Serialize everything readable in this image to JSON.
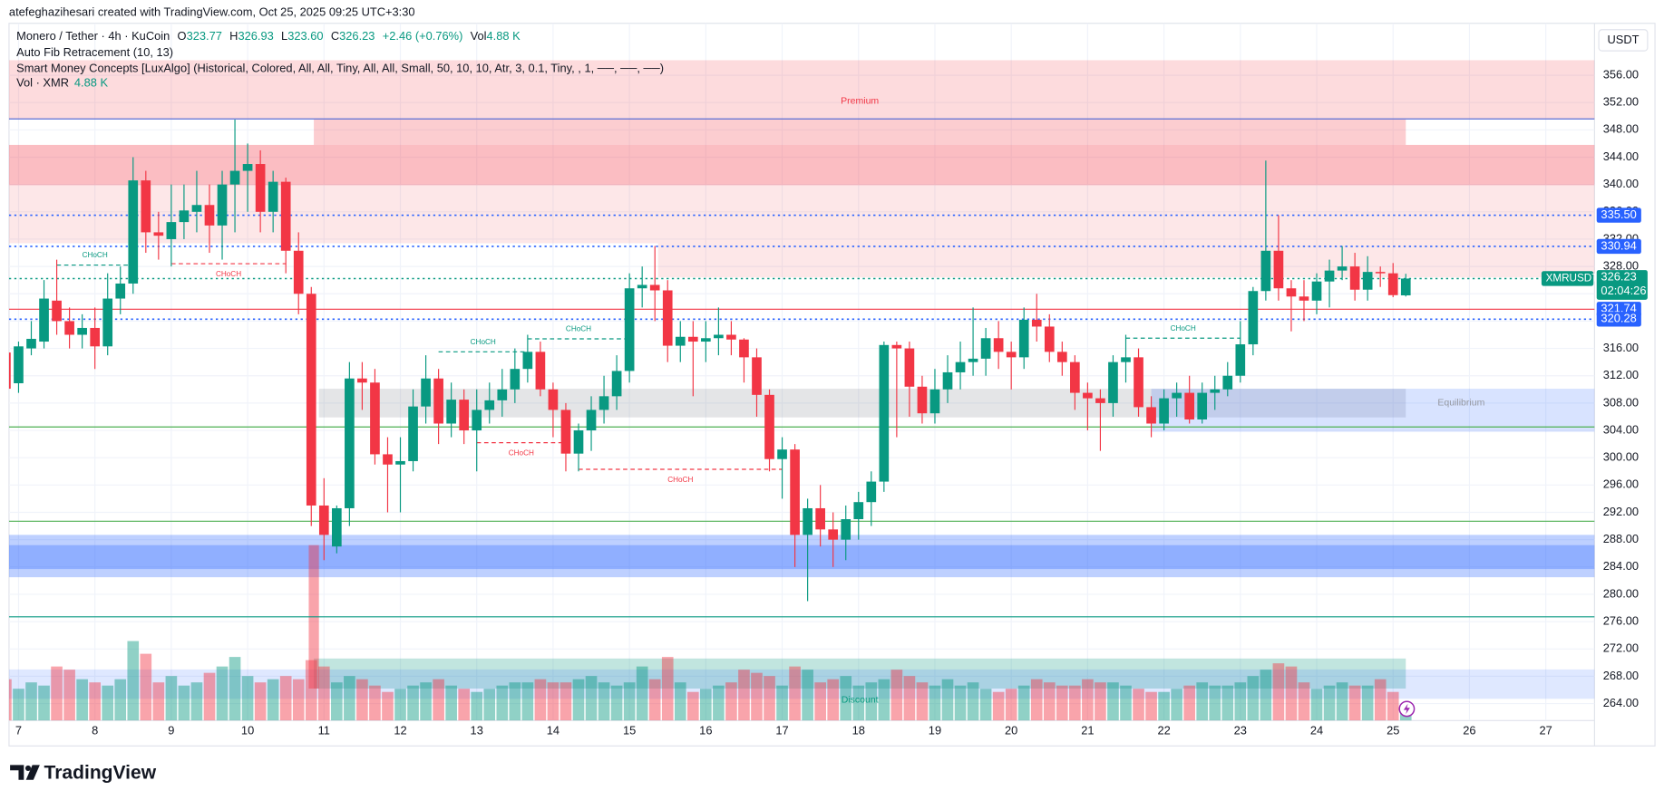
{
  "header": {
    "creator": "atefeghazihesari created with TradingView.com, Oct 25, 2025 09:25 UTC+3:30",
    "currency": "USDT"
  },
  "legend": {
    "symbol": "Monero / Tether · 4h · KuCoin",
    "o": "O",
    "o_value": "323.77",
    "h": "H",
    "h_value": "326.93",
    "l": "L",
    "l_value": "323.60",
    "c": "C",
    "c_value": "326.23",
    "change": "+2.46 (+0.76%)",
    "vol": "Vol",
    "vol_value": "4.88 K",
    "indicators": [
      "Auto Fib Retracement (10, 13)",
      "Smart Money Concepts [LuxAlgo] (Historical, Colored, All, All, Tiny, All, All, Small, 50, 10, 10, Atr, 3, 0.1, Tiny, , 1, ──, ──, ──)"
    ],
    "volume_name": "Vol · XMR",
    "volume_value": "4.88 K"
  },
  "footer": {
    "brand": "TradingView"
  },
  "chart_data": {
    "type": "candlestick",
    "up_color": "#089981",
    "down_color": "#f23645",
    "grid": true,
    "xlim": [
      0.25,
      124.83
    ],
    "ylim": [
      261.52,
      363.6
    ],
    "xticks": [
      {
        "value": 1,
        "label": "7"
      },
      {
        "value": 7,
        "label": "8"
      },
      {
        "value": 13,
        "label": "9"
      },
      {
        "value": 19,
        "label": "10"
      },
      {
        "value": 25,
        "label": "11"
      },
      {
        "value": 31,
        "label": "12"
      },
      {
        "value": 37,
        "label": "13"
      },
      {
        "value": 43,
        "label": "14"
      },
      {
        "value": 49,
        "label": "15"
      },
      {
        "value": 55,
        "label": "16"
      },
      {
        "value": 61,
        "label": "17"
      },
      {
        "value": 67,
        "label": "18"
      },
      {
        "value": 73,
        "label": "19"
      },
      {
        "value": 79,
        "label": "20"
      },
      {
        "value": 85,
        "label": "21"
      },
      {
        "value": 91,
        "label": "22"
      },
      {
        "value": 97,
        "label": "23"
      },
      {
        "value": 103,
        "label": "24"
      },
      {
        "value": 109,
        "label": "25"
      },
      {
        "value": 115,
        "label": "26"
      },
      {
        "value": 121,
        "label": "27"
      }
    ],
    "yticks": [
      {
        "value": 264,
        "label": "264.00"
      },
      {
        "value": 268,
        "label": "268.00"
      },
      {
        "value": 272,
        "label": "272.00"
      },
      {
        "value": 276,
        "label": "276.00"
      },
      {
        "value": 280,
        "label": "280.00"
      },
      {
        "value": 284,
        "label": "284.00"
      },
      {
        "value": 288,
        "label": "288.00"
      },
      {
        "value": 292,
        "label": "292.00"
      },
      {
        "value": 296,
        "label": "296.00"
      },
      {
        "value": 300,
        "label": "300.00"
      },
      {
        "value": 304,
        "label": "304.00"
      },
      {
        "value": 308,
        "label": "308.00"
      },
      {
        "value": 312,
        "label": "312.00"
      },
      {
        "value": 316,
        "label": "316.00"
      },
      {
        "value": 320,
        "label": "320.00"
      },
      {
        "value": 324,
        "label": "324.00"
      },
      {
        "value": 328,
        "label": "328.00"
      },
      {
        "value": 332,
        "label": "332.00"
      },
      {
        "value": 336,
        "label": "336.00"
      },
      {
        "value": 340,
        "label": "340.00"
      },
      {
        "value": 344,
        "label": "344.00"
      },
      {
        "value": 348,
        "label": "348.00"
      },
      {
        "value": 352,
        "label": "352.00"
      },
      {
        "value": 356,
        "label": "356.00"
      }
    ],
    "open": [
      315.4,
      310.9,
      316,
      317,
      323,
      320,
      318,
      319,
      316.3,
      323.3,
      325.5,
      340.6,
      333,
      332,
      334.5,
      336,
      337,
      334,
      340,
      342,
      343,
      336,
      340.4,
      330.3,
      324,
      293,
      287,
      292.6,
      311.6,
      311,
      300.5,
      299,
      299.5,
      307.5,
      311.6,
      305,
      308.5,
      304,
      307,
      308.4,
      310,
      313,
      315.5,
      310,
      307,
      300.6,
      304,
      307,
      309,
      312.7,
      324.8,
      325.3,
      324.5,
      316.4,
      317.7,
      317,
      317.5,
      318,
      317.3,
      314.7,
      309.2,
      299.8,
      301.2,
      288.7,
      292.6,
      289.5,
      288,
      291,
      293.5,
      296.5,
      316.5,
      316,
      310.4,
      306.5,
      310,
      312.5,
      314,
      314.5,
      317.5,
      315.5,
      314.7,
      320.2,
      319.2,
      315.5,
      314,
      309.5,
      308.7,
      308,
      314,
      314.7,
      307.4,
      305,
      308.7,
      309.5,
      305.6,
      309.5,
      310,
      312,
      316.6,
      324.4,
      330.3,
      324.8,
      323.6,
      323,
      325.8,
      327.4,
      328,
      324.6,
      327.2,
      327,
      323.77
    ],
    "high": [
      316,
      317,
      320,
      326,
      329,
      322,
      321,
      322,
      327,
      328,
      344,
      342,
      336,
      340,
      340,
      342,
      340,
      342,
      349.5,
      346,
      345,
      342,
      341,
      333,
      325,
      297,
      293,
      314,
      314,
      313,
      303,
      303,
      310,
      315,
      313,
      311,
      310,
      310,
      311,
      313,
      316,
      318,
      317,
      311,
      308,
      305,
      309,
      312,
      315,
      327,
      328,
      331,
      326,
      320,
      320,
      320,
      322,
      320,
      317.5,
      316,
      310,
      303,
      302,
      294,
      296,
      292,
      293,
      295,
      298,
      317,
      317,
      317,
      312,
      313,
      315,
      317,
      322,
      319,
      320,
      317,
      322,
      324,
      321,
      317,
      315,
      311,
      310,
      315,
      318,
      316,
      309,
      310,
      311,
      312,
      311,
      312,
      314,
      320,
      325,
      343.5,
      335.5,
      326,
      326,
      327,
      329,
      331,
      330,
      329.5,
      328,
      328.5,
      326.93
    ],
    "low": [
      309,
      309.5,
      315,
      316,
      318,
      316,
      316,
      313,
      315,
      321,
      324,
      330,
      329,
      328,
      332,
      333,
      330,
      329,
      333,
      336,
      333,
      333,
      327,
      321,
      290,
      285,
      286,
      290,
      307,
      299,
      292,
      292,
      298,
      305,
      302,
      303,
      302,
      298,
      305,
      306,
      308,
      311,
      309,
      303,
      298,
      298,
      301,
      305,
      307,
      311,
      322,
      320,
      314,
      314,
      309,
      314,
      315,
      315,
      311,
      306,
      298,
      294,
      284,
      279,
      287,
      284,
      285,
      288,
      290,
      295,
      303,
      306,
      305,
      305,
      308,
      310,
      312,
      312,
      313,
      310,
      313,
      317,
      314,
      312,
      307,
      304,
      301,
      306,
      311,
      306,
      303,
      304,
      306,
      305,
      305,
      307,
      309,
      311,
      315,
      323,
      323,
      318.5,
      320,
      321,
      322,
      326,
      323,
      323,
      325,
      323.5,
      323.6
    ],
    "close": [
      310.1,
      316.3,
      317.4,
      323.3,
      320,
      318,
      319,
      316.3,
      323.3,
      325.5,
      340.6,
      333,
      332.5,
      334.5,
      336.2,
      337,
      334,
      340,
      342,
      343,
      336,
      340.4,
      330.3,
      324,
      293,
      288.7,
      292.6,
      311.6,
      311,
      300.5,
      299,
      299.5,
      307.5,
      311.6,
      305,
      308.5,
      304,
      307,
      308.4,
      310,
      313,
      315.5,
      310,
      307,
      300.6,
      304,
      307,
      309,
      312.7,
      324.8,
      325.3,
      324.5,
      316.4,
      317.7,
      317,
      317.5,
      318,
      317.3,
      314.7,
      309.2,
      299.8,
      301.2,
      288.7,
      292.6,
      289.5,
      288,
      291,
      293.5,
      296.5,
      316.5,
      316,
      310.4,
      306.5,
      310,
      312.5,
      314,
      314.5,
      317.5,
      315.5,
      314.7,
      320.2,
      319.2,
      315.5,
      314,
      309.5,
      308.7,
      308,
      314,
      314.7,
      307.4,
      305,
      308.7,
      309.5,
      305.6,
      309.5,
      310,
      312,
      316.6,
      324.4,
      330.3,
      324.8,
      323.6,
      323,
      325.8,
      327.4,
      328,
      324.6,
      327.2,
      327,
      323.8,
      326.23
    ],
    "volume": [
      13,
      10,
      12,
      11,
      17,
      16,
      13,
      12,
      11,
      13,
      25,
      21,
      12,
      14,
      11,
      12,
      15,
      17,
      20,
      14,
      12,
      13,
      14,
      13,
      19,
      17,
      12,
      14,
      13,
      11,
      9,
      10,
      11,
      12,
      13,
      11,
      10,
      9,
      10,
      11,
      12,
      12,
      13,
      12,
      12,
      13,
      14,
      12,
      11,
      12,
      17,
      13,
      20,
      12,
      9,
      10,
      11,
      12,
      16,
      15,
      14,
      11,
      17,
      16,
      12,
      13,
      14,
      11,
      12,
      13,
      16,
      14,
      12,
      11,
      13,
      11,
      12,
      10,
      9,
      10,
      11,
      13,
      12,
      11,
      11,
      13,
      12,
      12,
      11,
      10,
      9,
      9,
      10,
      11,
      12,
      11,
      11,
      12,
      14,
      16,
      18,
      17,
      12,
      10,
      11,
      12,
      11,
      11,
      13,
      9,
      4.88
    ],
    "zones": [
      {
        "x0": 0.25,
        "x1": 124.83,
        "top": 358.2,
        "bottom": 349.6,
        "color": "rgba(242,54,69,0.18)"
      },
      {
        "x0": 24.2,
        "x1": 110,
        "top": 349.6,
        "bottom": 345.8,
        "color": "rgba(242,54,69,0.25)"
      },
      {
        "x0": 0.25,
        "x1": 124.83,
        "top": 345.8,
        "bottom": 339.9,
        "color": "rgba(242,54,69,0.33)"
      },
      {
        "x0": 0.25,
        "x1": 124.83,
        "top": 339.9,
        "bottom": 331.4,
        "color": "rgba(242,54,69,0.12)"
      },
      {
        "x0": 51.25,
        "x1": 124.83,
        "top": 331.4,
        "bottom": 326.4,
        "color": "rgba(242,54,69,0.12)"
      },
      {
        "x0": 24.6,
        "x1": 110,
        "top": 310.1,
        "bottom": 305.9,
        "color": "rgba(120,123,134,0.2)"
      },
      {
        "x0": 90,
        "x1": 124.83,
        "top": 310.1,
        "bottom": 303.8,
        "color": "rgba(41,98,255,0.18)"
      },
      {
        "x0": 0.25,
        "x1": 124.83,
        "top": 288.7,
        "bottom": 282.5,
        "color": "rgba(41,98,255,0.3)"
      },
      {
        "x0": 0.25,
        "x1": 124.83,
        "top": 287.2,
        "bottom": 283.7,
        "color": "rgba(41,98,255,0.3)"
      },
      {
        "x0": 24.2,
        "x1": 110,
        "top": 270.6,
        "bottom": 266.2,
        "color": "rgba(8,153,129,0.25)"
      },
      {
        "x0": 0.25,
        "x1": 124.83,
        "top": 269,
        "bottom": 264.7,
        "color": "rgba(41,98,255,0.15)"
      },
      {
        "x0": 23.8,
        "x1": 24.6,
        "top": 287.2,
        "bottom": 266.2,
        "color": "rgba(242,54,69,0.45)"
      }
    ],
    "annotations": [
      {
        "text": "Premium",
        "x": 67.1,
        "price": 352.2,
        "color": "#f23645"
      },
      {
        "text": "Equilibrium",
        "x": 112.5,
        "price": 308,
        "color": "#9598a1"
      },
      {
        "text": "Discount",
        "x": 67.1,
        "price": 264.5,
        "color": "#089981"
      }
    ],
    "levels": [
      {
        "value": 349.6,
        "color": "#5b6fd6",
        "style": "solid"
      },
      {
        "value": 304.5,
        "color": "#4caf50",
        "style": "solid"
      },
      {
        "value": 290.7,
        "color": "#4caf50",
        "style": "solid"
      },
      {
        "value": 276.7,
        "color": "#089981",
        "style": "solid"
      },
      {
        "value": 326.23,
        "color": "#089981",
        "style": "dotted"
      },
      {
        "value": 335.5,
        "label": "335.50",
        "color": "#2962ff",
        "style": "dotted"
      },
      {
        "value": 330.94,
        "label": "330.94",
        "color": "#2962ff",
        "style": "dotted"
      },
      {
        "value": 321.74,
        "label": "321.74",
        "color": "#f23645",
        "style": "solid"
      },
      {
        "value": 320.28,
        "label": "320.28",
        "color": "#2962ff",
        "style": "dotted"
      }
    ],
    "label_color": "#2962ff",
    "structures": [
      {
        "label": "CHoCH",
        "price": 328.2,
        "i0": 4,
        "i1": 10,
        "color": "#089981",
        "label_side": "above"
      },
      {
        "label": "CHoCH",
        "price": 328.4,
        "i0": 13,
        "i1": 22,
        "color": "#f23645",
        "label_side": "below"
      },
      {
        "label": "CHoCH",
        "price": 315.5,
        "i0": 34,
        "i1": 41,
        "color": "#089981",
        "label_side": "above"
      },
      {
        "label": "CHoCH",
        "price": 317.4,
        "i0": 41,
        "i1": 49,
        "color": "#089981",
        "label_side": "above"
      },
      {
        "label": "CHoCH",
        "price": 302.2,
        "i0": 37,
        "i1": 44,
        "color": "#f23645",
        "label_side": "below"
      },
      {
        "label": "CHoCH",
        "price": 298.3,
        "i0": 45,
        "i1": 61,
        "color": "#f23645",
        "label_side": "below"
      },
      {
        "label": "CHoCH",
        "price": 317.5,
        "i0": 88,
        "i1": 97,
        "color": "#089981",
        "label_side": "above"
      }
    ],
    "last": {
      "name": "XMRUSDT",
      "value": 326.23,
      "countdown": "02:04:26",
      "color": "#089981"
    }
  }
}
